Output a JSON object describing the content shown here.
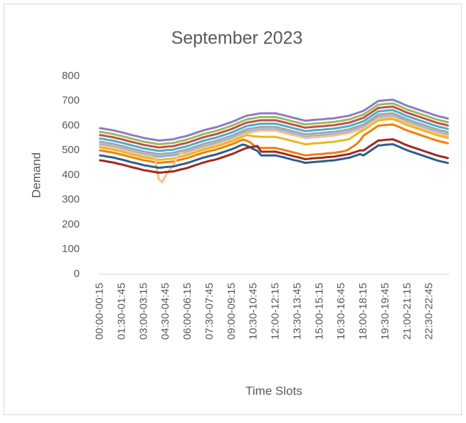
{
  "chart_data": {
    "type": "line",
    "title": "September 2023",
    "x_label": "Time Slots",
    "y_label": "Demand",
    "ylim": [
      0,
      800
    ],
    "yticks": [
      0,
      100,
      200,
      300,
      400,
      500,
      600,
      700,
      800
    ],
    "grid": false,
    "categories": [
      "00:00-00:15",
      null,
      null,
      null,
      null,
      null,
      "01:30-01:45",
      null,
      null,
      null,
      null,
      null,
      "03:00-03:15",
      null,
      null,
      null,
      null,
      null,
      "04:30-04:45",
      null,
      null,
      null,
      null,
      null,
      "06:00-06:15",
      null,
      null,
      null,
      null,
      null,
      "07:30-07:45",
      null,
      null,
      null,
      null,
      null,
      "09:00-09:15",
      null,
      null,
      null,
      null,
      null,
      "10:30-10:45",
      null,
      null,
      null,
      null,
      null,
      "12:00-12:15",
      null,
      null,
      null,
      null,
      null,
      "13:30-13:45",
      null,
      null,
      null,
      null,
      null,
      "15:00-15:15",
      null,
      null,
      null,
      null,
      null,
      "16:30-16:45",
      null,
      null,
      null,
      null,
      null,
      "18:00-18:15",
      null,
      null,
      null,
      null,
      null,
      "19:30-19:45",
      null,
      null,
      null,
      null,
      null,
      "21:00-21:15",
      null,
      null,
      null,
      null,
      null,
      "22:30-22:45",
      null,
      null,
      null,
      null,
      null
    ],
    "series": [
      {
        "color": "#8e7cc3",
        "values": [
          590,
          588,
          585,
          583,
          580,
          576,
          573,
          569,
          565,
          561,
          558,
          554,
          550,
          548,
          545,
          543,
          540,
          541,
          543,
          544,
          545,
          549,
          553,
          556,
          560,
          565,
          570,
          575,
          580,
          584,
          588,
          591,
          595,
          600,
          605,
          610,
          615,
          621,
          628,
          634,
          640,
          643,
          645,
          648,
          650,
          650,
          650,
          650,
          650,
          646,
          643,
          639,
          635,
          631,
          628,
          624,
          620,
          621,
          623,
          624,
          625,
          626,
          628,
          629,
          630,
          633,
          635,
          638,
          640,
          645,
          650,
          655,
          660,
          670,
          680,
          690,
          700,
          701,
          703,
          704,
          705,
          699,
          693,
          686,
          680,
          675,
          670,
          665,
          660,
          655,
          650,
          645,
          640,
          636,
          633,
          629
        ]
      },
      {
        "color": "#9bbb59",
        "values": [
          575,
          573,
          570,
          568,
          565,
          561,
          558,
          554,
          550,
          546,
          543,
          539,
          535,
          533,
          530,
          528,
          525,
          526,
          528,
          529,
          530,
          534,
          538,
          541,
          545,
          550,
          555,
          560,
          565,
          569,
          573,
          576,
          580,
          585,
          590,
          595,
          600,
          606,
          613,
          619,
          625,
          628,
          630,
          633,
          635,
          635,
          635,
          635,
          635,
          631,
          628,
          624,
          620,
          616,
          613,
          609,
          605,
          606,
          608,
          609,
          610,
          611,
          613,
          614,
          615,
          618,
          620,
          623,
          625,
          630,
          635,
          640,
          645,
          655,
          665,
          675,
          685,
          686,
          688,
          689,
          690,
          684,
          678,
          671,
          665,
          660,
          655,
          650,
          645,
          640,
          635,
          630,
          625,
          621,
          618,
          614
        ]
      },
      {
        "color": "#c0504d",
        "values": [
          562,
          560,
          557,
          555,
          552,
          548,
          545,
          541,
          537,
          533,
          530,
          526,
          522,
          520,
          517,
          515,
          512,
          513,
          515,
          516,
          517,
          521,
          525,
          528,
          532,
          537,
          542,
          547,
          552,
          556,
          560,
          563,
          567,
          572,
          577,
          582,
          587,
          593,
          600,
          606,
          612,
          615,
          617,
          620,
          622,
          622,
          622,
          622,
          622,
          618,
          615,
          611,
          607,
          603,
          600,
          596,
          592,
          593,
          595,
          596,
          597,
          598,
          600,
          601,
          602,
          605,
          607,
          610,
          612,
          617,
          622,
          627,
          632,
          642,
          652,
          662,
          672,
          673,
          675,
          676,
          677,
          671,
          665,
          658,
          652,
          647,
          642,
          637,
          632,
          627,
          622,
          617,
          612,
          608,
          605,
          601
        ]
      },
      {
        "color": "#4bacc6",
        "values": [
          548,
          546,
          543,
          541,
          538,
          534,
          531,
          527,
          523,
          519,
          516,
          512,
          508,
          506,
          503,
          501,
          498,
          499,
          501,
          502,
          503,
          507,
          511,
          514,
          518,
          523,
          528,
          533,
          538,
          542,
          546,
          549,
          553,
          558,
          563,
          568,
          573,
          579,
          586,
          592,
          598,
          601,
          603,
          606,
          608,
          608,
          608,
          608,
          608,
          604,
          601,
          597,
          593,
          589,
          586,
          582,
          578,
          579,
          581,
          582,
          583,
          584,
          586,
          587,
          588,
          591,
          593,
          596,
          598,
          603,
          608,
          613,
          618,
          628,
          638,
          648,
          658,
          659,
          661,
          662,
          663,
          657,
          651,
          644,
          638,
          633,
          628,
          623,
          618,
          613,
          608,
          603,
          598,
          594,
          591,
          587
        ]
      },
      {
        "color": "#a5a5a5",
        "values": [
          535,
          533,
          530,
          528,
          525,
          521,
          518,
          514,
          510,
          506,
          503,
          499,
          495,
          493,
          490,
          488,
          485,
          486,
          488,
          489,
          490,
          494,
          498,
          501,
          505,
          510,
          515,
          520,
          525,
          529,
          533,
          536,
          540,
          545,
          550,
          555,
          560,
          566,
          573,
          579,
          585,
          588,
          590,
          593,
          595,
          595,
          595,
          595,
          595,
          591,
          588,
          584,
          580,
          576,
          573,
          569,
          565,
          566,
          568,
          569,
          570,
          571,
          573,
          574,
          575,
          578,
          580,
          583,
          585,
          590,
          595,
          600,
          605,
          615,
          625,
          635,
          645,
          646,
          648,
          649,
          650,
          644,
          638,
          631,
          625,
          620,
          615,
          610,
          605,
          600,
          595,
          590,
          585,
          581,
          578,
          574
        ]
      },
      {
        "color": "#7fb2e5",
        "values": [
          525,
          523,
          520,
          518,
          515,
          511,
          508,
          504,
          500,
          496,
          493,
          489,
          485,
          483,
          480,
          478,
          475,
          476,
          478,
          479,
          480,
          484,
          488,
          491,
          495,
          500,
          505,
          510,
          515,
          519,
          523,
          526,
          530,
          535,
          540,
          545,
          550,
          556,
          563,
          569,
          575,
          578,
          580,
          583,
          585,
          585,
          585,
          585,
          585,
          581,
          578,
          574,
          570,
          566,
          563,
          559,
          555,
          556,
          558,
          559,
          560,
          561,
          563,
          564,
          565,
          568,
          570,
          573,
          575,
          580,
          585,
          590,
          595,
          605,
          615,
          625,
          635,
          636,
          638,
          639,
          640,
          634,
          628,
          621,
          615,
          610,
          605,
          600,
          595,
          590,
          585,
          580,
          575,
          571,
          568,
          564
        ]
      },
      {
        "color": "#e6b91e",
        "values": [
          512,
          510,
          507,
          505,
          502,
          498,
          495,
          491,
          487,
          483,
          480,
          476,
          472,
          470,
          467,
          465,
          462,
          463,
          465,
          466,
          467,
          471,
          475,
          478,
          482,
          487,
          492,
          497,
          502,
          506,
          510,
          513,
          517,
          522,
          527,
          532,
          537,
          543,
          550,
          556,
          562,
          560,
          557,
          556,
          555,
          555,
          555,
          555,
          555,
          551,
          548,
          544,
          540,
          536,
          533,
          529,
          525,
          526,
          528,
          529,
          530,
          531,
          533,
          534,
          535,
          538,
          540,
          543,
          545,
          555,
          565,
          575,
          582,
          592,
          602,
          612,
          622,
          623,
          625,
          626,
          627,
          621,
          615,
          608,
          602,
          597,
          592,
          587,
          582,
          577,
          572,
          567,
          562,
          558,
          555,
          551
        ]
      },
      {
        "color": "#f07f09",
        "values": [
          500,
          498,
          495,
          493,
          490,
          486,
          483,
          479,
          475,
          471,
          468,
          464,
          460,
          458,
          455,
          453,
          450,
          451,
          453,
          454,
          455,
          459,
          463,
          466,
          470,
          475,
          480,
          485,
          490,
          494,
          498,
          501,
          505,
          510,
          515,
          520,
          525,
          531,
          538,
          544,
          540,
          533,
          520,
          513,
          510,
          510,
          510,
          510,
          510,
          506,
          503,
          499,
          495,
          491,
          488,
          484,
          480,
          481,
          483,
          484,
          485,
          486,
          488,
          489,
          490,
          493,
          495,
          498,
          505,
          515,
          525,
          540,
          560,
          570,
          580,
          590,
          600,
          601,
          603,
          604,
          605,
          599,
          593,
          586,
          580,
          575,
          570,
          565,
          560,
          555,
          550,
          545,
          540,
          536,
          533,
          529
        ]
      },
      {
        "color": "#f9c08e",
        "values": [
          520,
          518,
          515,
          513,
          510,
          506,
          503,
          499,
          495,
          491,
          488,
          484,
          480,
          478,
          475,
          470,
          385,
          372,
          400,
          420,
          440,
          470,
          490,
          486,
          490,
          495,
          500,
          505,
          510,
          514,
          518,
          521,
          525,
          530,
          535,
          540,
          545,
          551,
          558,
          564,
          570,
          573,
          575,
          578,
          580,
          580,
          580,
          580,
          580,
          576,
          573,
          569,
          565,
          561,
          558,
          554,
          550,
          551,
          553,
          554,
          555,
          556,
          558,
          559,
          560,
          563,
          565,
          568,
          570,
          575,
          580,
          585,
          590,
          600,
          610,
          620,
          630,
          631,
          633,
          634,
          635,
          629,
          623,
          616,
          610,
          605,
          600,
          595,
          590,
          585,
          580,
          575,
          570,
          566,
          563,
          559
        ]
      },
      {
        "color": "#2c5d8f",
        "values": [
          480,
          478,
          475,
          473,
          470,
          466,
          463,
          459,
          455,
          451,
          448,
          444,
          440,
          438,
          435,
          433,
          430,
          431,
          433,
          434,
          435,
          439,
          443,
          446,
          450,
          455,
          460,
          465,
          470,
          474,
          478,
          481,
          485,
          490,
          495,
          500,
          505,
          511,
          518,
          524,
          520,
          513,
          505,
          498,
          480,
          480,
          480,
          480,
          480,
          476,
          473,
          469,
          465,
          461,
          458,
          454,
          450,
          451,
          453,
          454,
          455,
          456,
          458,
          459,
          460,
          463,
          465,
          468,
          470,
          475,
          480,
          485,
          480,
          490,
          500,
          510,
          520,
          521,
          523,
          524,
          525,
          519,
          513,
          506,
          500,
          495,
          490,
          485,
          480,
          475,
          470,
          465,
          460,
          456,
          453,
          449
        ]
      },
      {
        "color": "#9e2a1e",
        "values": [
          460,
          458,
          455,
          453,
          450,
          446,
          443,
          439,
          435,
          431,
          428,
          424,
          420,
          418,
          415,
          413,
          410,
          411,
          413,
          414,
          415,
          419,
          423,
          426,
          430,
          435,
          440,
          445,
          450,
          454,
          458,
          461,
          465,
          470,
          475,
          480,
          485,
          491,
          498,
          504,
          510,
          513,
          515,
          518,
          495,
          495,
          495,
          495,
          495,
          491,
          488,
          484,
          480,
          476,
          473,
          469,
          465,
          466,
          468,
          469,
          470,
          471,
          473,
          474,
          475,
          478,
          480,
          483,
          485,
          490,
          495,
          500,
          500,
          510,
          520,
          530,
          540,
          541,
          543,
          544,
          545,
          539,
          533,
          526,
          520,
          515,
          510,
          505,
          500,
          495,
          490,
          485,
          480,
          476,
          473,
          469
        ]
      }
    ]
  }
}
